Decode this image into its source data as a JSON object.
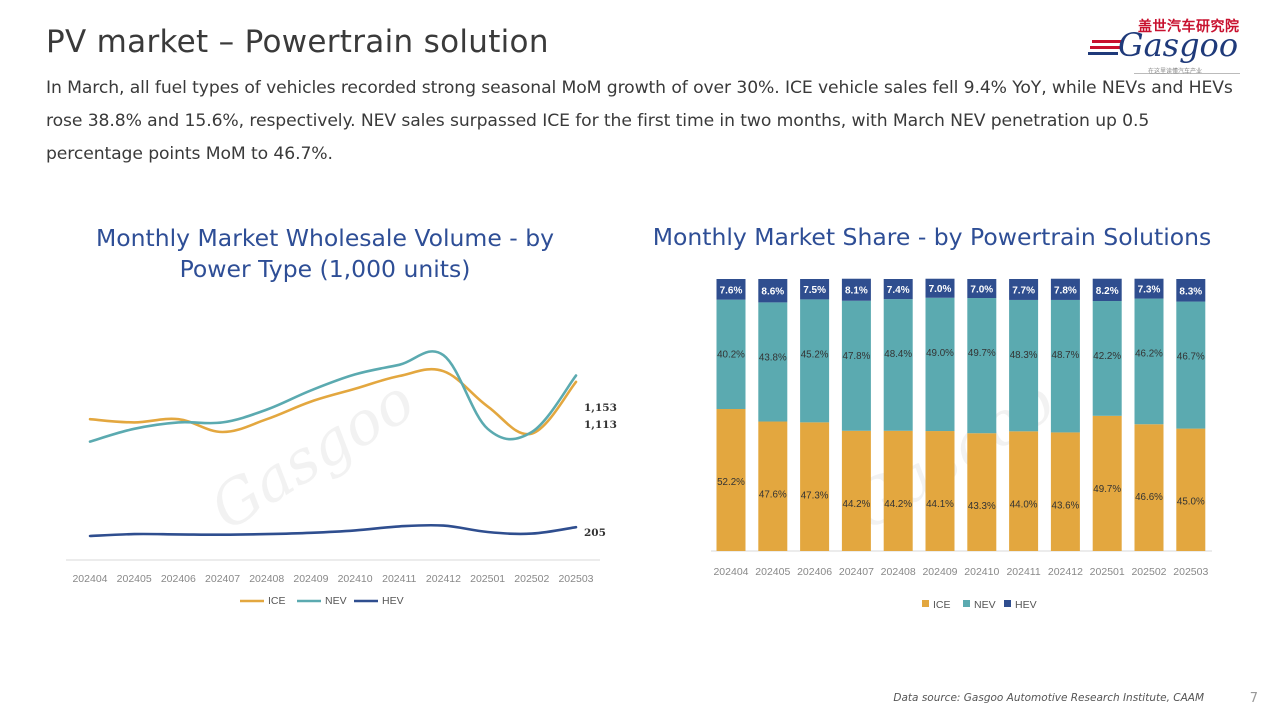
{
  "page": {
    "title": "PV market – Powertrain solution",
    "summary": "In March, all fuel types of vehicles recorded strong seasonal MoM growth of over 30%. ICE vehicle sales fell 9.4% YoY, while NEVs and HEVs rose 38.8% and 15.6%, respectively. NEV sales surpassed ICE for the first time in two months, with March NEV penetration up 0.5 percentage points MoM to 46.7%.",
    "source": "Data source: Gasgoo Automotive Research Institute, CAAM",
    "page_number": "7"
  },
  "logo": {
    "cn_text": "盖世汽车研究院",
    "word": "Gasgoo",
    "tagline": "在这里读懂汽车产业"
  },
  "watermark": "Gasgoo",
  "colors": {
    "ice": "#E3A73F",
    "nev": "#5BAAB0",
    "hev": "#2F4E8F",
    "title": "#2E4E96"
  },
  "chart_data": [
    {
      "type": "line",
      "title": "Monthly Market Wholesale Volume - by Power Type (1,000 units)",
      "categories": [
        "202404",
        "202405",
        "202406",
        "202407",
        "202408",
        "202409",
        "202410",
        "202411",
        "202412",
        "202501",
        "202502",
        "202503"
      ],
      "series": [
        {
          "name": "ICE",
          "values": [
            880,
            860,
            880,
            800,
            880,
            990,
            1070,
            1150,
            1180,
            960,
            790,
            1113
          ],
          "end_label": "1,113"
        },
        {
          "name": "NEV",
          "values": [
            740,
            820,
            860,
            860,
            940,
            1060,
            1160,
            1220,
            1280,
            820,
            800,
            1153
          ],
          "end_label": "1,153"
        },
        {
          "name": "HEV",
          "values": [
            150,
            162,
            160,
            158,
            162,
            170,
            185,
            210,
            215,
            175,
            165,
            205
          ],
          "end_label": "205"
        }
      ],
      "legend": "bottom"
    },
    {
      "type": "bar",
      "stacked": true,
      "title": "Monthly Market Share - by Powertrain Solutions",
      "categories": [
        "202404",
        "202405",
        "202406",
        "202407",
        "202408",
        "202409",
        "202410",
        "202411",
        "202412",
        "202501",
        "202502",
        "202503"
      ],
      "series": [
        {
          "name": "ICE",
          "values": [
            52.2,
            47.6,
            47.3,
            44.2,
            44.2,
            44.1,
            43.3,
            44.0,
            43.6,
            49.7,
            46.6,
            45.0
          ],
          "labels": [
            "52.2%",
            "47.6%",
            "47.3%",
            "44.2%",
            "44.2%",
            "44.1%",
            "43.3%",
            "44.0%",
            "43.6%",
            "49.7%",
            "46.6%",
            "45.0%"
          ]
        },
        {
          "name": "NEV",
          "values": [
            40.2,
            43.8,
            45.2,
            47.8,
            48.4,
            49.0,
            49.7,
            48.3,
            48.7,
            42.2,
            46.2,
            46.7
          ],
          "labels": [
            "40.2%",
            "43.8%",
            "45.2%",
            "47.8%",
            "48.4%",
            "49.0%",
            "49.7%",
            "48.3%",
            "48.7%",
            "42.2%",
            "46.2%",
            "46.7%"
          ]
        },
        {
          "name": "HEV",
          "values": [
            7.6,
            8.6,
            7.5,
            8.1,
            7.4,
            7.0,
            7.0,
            7.7,
            7.8,
            8.2,
            7.3,
            8.3
          ],
          "labels": [
            "7.6%",
            "8.6%",
            "7.5%",
            "8.1%",
            "7.4%",
            "7.0%",
            "7.0%",
            "7.7%",
            "7.8%",
            "8.2%",
            "7.3%",
            "8.3%"
          ]
        }
      ],
      "ylim": [
        0,
        100
      ],
      "legend": "bottom"
    }
  ]
}
